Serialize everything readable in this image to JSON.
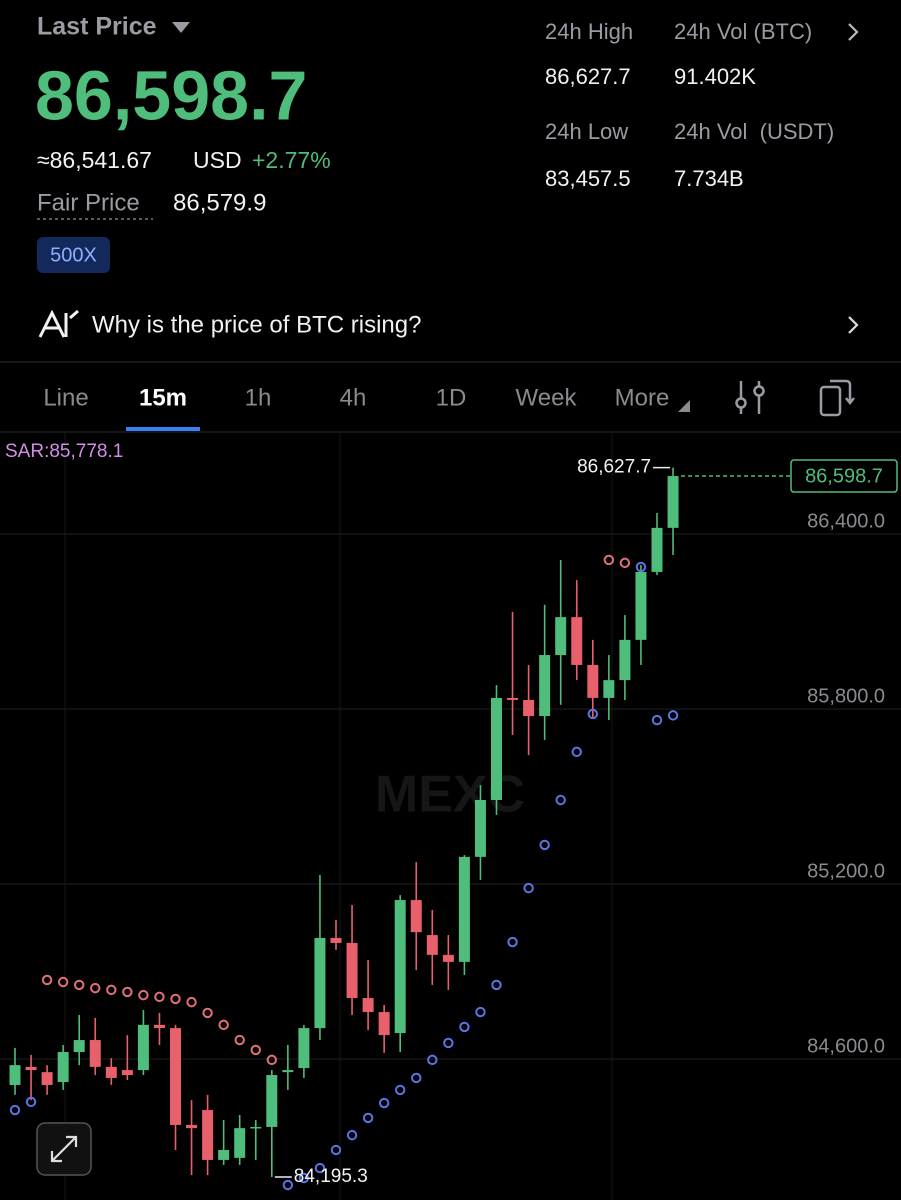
{
  "header": {
    "last_price_label": "Last Price",
    "price": "86,598.7",
    "approx_usd": "≈86,541.67",
    "usd_unit": "USD",
    "change": "+2.77%",
    "fair_price_label": "Fair Price",
    "fair_price": "86,579.9",
    "leverage": "500X"
  },
  "stats": [
    {
      "label": "24h High",
      "value": "86,627.7"
    },
    {
      "label": "24h Vol (BTC)",
      "value": "91.402K"
    },
    {
      "label": "24h Low",
      "value": "83,457.5"
    },
    {
      "label": "24h Vol  (USDT)",
      "value": "7.734B"
    }
  ],
  "insight": "Why is the price of BTC rising?",
  "tabs": [
    "Line",
    "15m",
    "1h",
    "4h",
    "1D",
    "Week",
    "More"
  ],
  "active_tab": 1,
  "chart": {
    "type": "candlestick",
    "watermark": "MEXC",
    "sar": {
      "label": "SAR:85,778.1",
      "values": [
        84425,
        84453,
        84871,
        84864,
        84854,
        84843,
        84837,
        84830,
        84819,
        84813,
        84806,
        84795,
        84758,
        84717,
        84665,
        84631,
        84597,
        84168,
        84192,
        84226,
        84288,
        84339,
        84398,
        84449,
        84494,
        84535,
        84597,
        84655,
        84710,
        84761,
        84854,
        85001,
        85186,
        85334,
        85488,
        85653,
        85783,
        86311,
        86301,
        86287,
        85762,
        85778.1
      ]
    },
    "open": [
      84511,
      84573,
      84555,
      84521,
      84624,
      84665,
      84573,
      84562,
      84562,
      84717,
      84706,
      84374,
      84425,
      84254,
      84261,
      84363,
      84367,
      84555,
      84569,
      84706,
      85015,
      84998,
      84809,
      84761,
      84689,
      85145,
      85025,
      84957,
      84933,
      85293,
      85488,
      85838,
      85831,
      85776,
      85985,
      86115,
      85951,
      85838,
      85899,
      86037,
      86270,
      86421
    ],
    "close": [
      84579,
      84562,
      84511,
      84624,
      84665,
      84573,
      84535,
      84545,
      84717,
      84706,
      84374,
      84363,
      84254,
      84288,
      84363,
      84367,
      84545,
      84562,
      84706,
      85015,
      84998,
      84809,
      84761,
      84682,
      85145,
      85035,
      84957,
      84933,
      85293,
      85488,
      85838,
      85831,
      85776,
      85985,
      86115,
      85951,
      85838,
      85899,
      86037,
      86270,
      86421,
      86598.7
    ],
    "high": [
      84638,
      84614,
      84579,
      84648,
      84751,
      84741,
      84603,
      84682,
      84768,
      84758,
      84717,
      84459,
      84477,
      84391,
      84408,
      84391,
      84562,
      84648,
      84717,
      85231,
      85077,
      85128,
      84939,
      84785,
      85162,
      85275,
      85111,
      85025,
      85299,
      85539,
      85882,
      86133,
      85951,
      86157,
      86311,
      86242,
      86037,
      85985,
      86122,
      86294,
      86472,
      86627.7
    ],
    "low": [
      84477,
      84459,
      84477,
      84494,
      84579,
      84545,
      84511,
      84528,
      84545,
      84648,
      84288,
      84202,
      84202,
      84237,
      84237,
      84254,
      84195.3,
      84494,
      84535,
      84665,
      84974,
      84751,
      84699,
      84621,
      84624,
      84905,
      84854,
      84837,
      84888,
      85214,
      85437,
      85711,
      85642,
      85694,
      85814,
      85899,
      85769,
      85762,
      85831,
      85951,
      86259,
      86328
    ],
    "ylim": [
      84116.6,
      86739.4
    ],
    "yticks": [
      {
        "value": 84600,
        "label": "84,600.0"
      },
      {
        "value": 85200,
        "label": "85,200.0"
      },
      {
        "value": 85800,
        "label": "85,800.0"
      },
      {
        "value": 86400,
        "label": "86,400.0"
      }
    ],
    "high_label": "86,627.7",
    "low_label": "84,195.3",
    "last_price_tag": "86,598.7",
    "up_color": "#4fbd7b",
    "down_color": "#e8606c",
    "sar_up_color": "#5b74e6",
    "sar_down_color": "#e2707a"
  }
}
